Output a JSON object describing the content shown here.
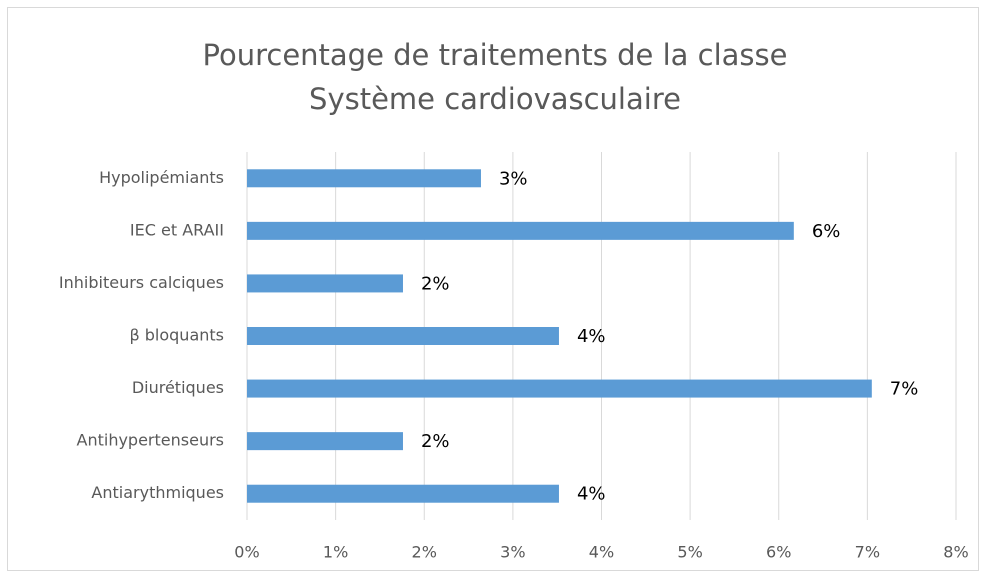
{
  "chart_data": {
    "type": "bar",
    "orientation": "horizontal",
    "title": [
      "Pourcentage de traitements de la classe",
      "Système cardiovasculaire"
    ],
    "categories": [
      "Hypolipémiants",
      "IEC et ARAII",
      "Inhibiteurs calciques",
      "β bloquants",
      "Diurétiques",
      "Antihypertenseurs",
      "Antiarythmiques"
    ],
    "values": [
      2.64,
      6.17,
      1.76,
      3.52,
      7.05,
      1.76,
      3.52
    ],
    "value_labels": [
      "3%",
      "6%",
      "2%",
      "4%",
      "7%",
      "2%",
      "4%"
    ],
    "color": "#5b9bd5",
    "xlim": [
      0,
      8
    ],
    "xticks": [
      {
        "value": 0,
        "label": "0%"
      },
      {
        "value": 1,
        "label": "1%"
      },
      {
        "value": 2,
        "label": "2%"
      },
      {
        "value": 3,
        "label": "3%"
      },
      {
        "value": 4,
        "label": "4%"
      },
      {
        "value": 5,
        "label": "5%"
      },
      {
        "value": 6,
        "label": "6%"
      },
      {
        "value": 7,
        "label": "7%"
      },
      {
        "value": 8,
        "label": "8%"
      }
    ],
    "grid": true
  }
}
